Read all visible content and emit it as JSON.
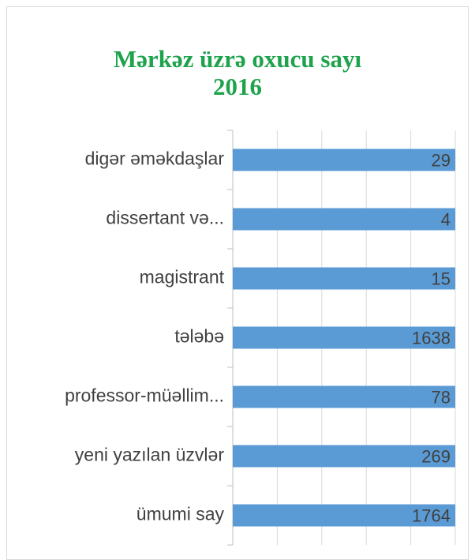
{
  "chart_data": {
    "type": "barh",
    "title": "Mərkəz üzrə oxucu sayı",
    "subtitle": "2016",
    "categories": [
      "digər əməkdaşlar",
      "dissertant və...",
      "magistrant",
      "tələbə",
      "professor-müəllim...",
      "yeni yazılan üzvlər",
      "ümumi say"
    ],
    "values": [
      29,
      4,
      15,
      1638,
      78,
      269,
      1764
    ],
    "color": "#5b9bd5",
    "xlim": [
      0,
      2.5
    ],
    "xticks": [
      0,
      0.5,
      1,
      1.5,
      2,
      2.5
    ],
    "grid": true
  }
}
